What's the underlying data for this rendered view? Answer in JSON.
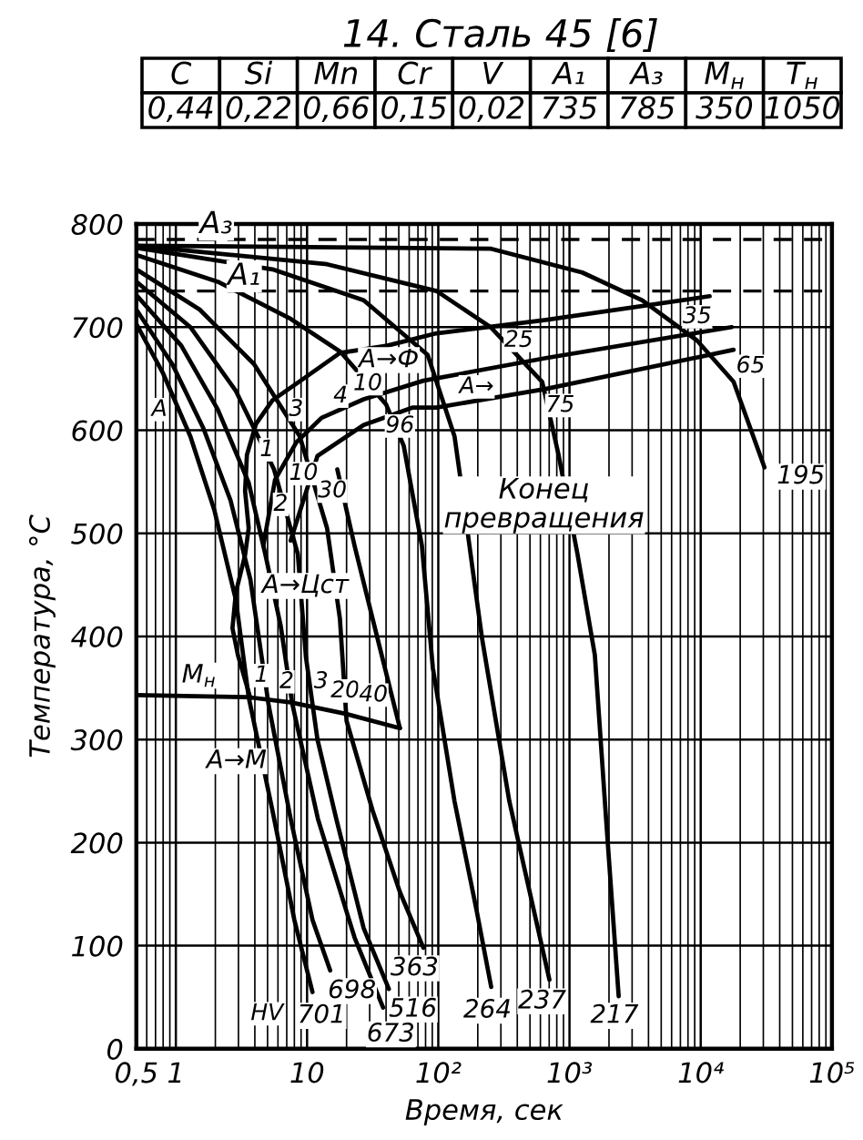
{
  "chart_data": [
    {
      "type": "other",
      "title": "14. Сталь 45 [6]",
      "annotations": [
        "C",
        "Si",
        "Mn",
        "Cr",
        "V",
        "A₁",
        "A₃",
        "M$_{н}$",
        "T$_{н}$",
        "0,44",
        "0,22",
        "0,66",
        "0,15",
        "0,02",
        "735",
        "785",
        "350",
        "1050"
      ]
    },
    {
      "type": "line",
      "xlabel": "Время, сек",
      "ylabel": "Температура, °С",
      "log": "x",
      "xlim": [
        0.5,
        100000
      ],
      "ylim": [
        0,
        800
      ],
      "xticks": [
        {
          "value": 0.5,
          "label": "0,5"
        },
        1,
        10,
        {
          "value": 100,
          "label": "10²"
        },
        {
          "value": 1000,
          "label": "10³"
        },
        {
          "value": 10000,
          "label": "10⁴"
        },
        {
          "value": 100000,
          "label": "10⁵"
        }
      ],
      "yticks": [
        0,
        100,
        200,
        300,
        400,
        500,
        600,
        700,
        800
      ],
      "grid": true,
      "line_style": "solid",
      "ref_lines": [
        {
          "axis": "y",
          "value": 785,
          "label": "A₃",
          "line_style": "dashed",
          "color": "#000000"
        },
        {
          "axis": "y",
          "value": 735,
          "label": "A₁",
          "line_style": "dashed",
          "color": "#000000"
        }
      ],
      "series": [
        {
          "color": "#000000",
          "x": [
            0.5,
            0.8,
            1.29,
            1.96,
            2.87,
            3.59,
            5.45,
            8.0,
            11.0
          ],
          "values": [
            703,
            655,
            594,
            523,
            435,
            341,
            231,
            125,
            55
          ]
        },
        {
          "color": "#000000",
          "x": [
            0.5,
            0.94,
            1.62,
            2.61,
            3.7,
            5.1,
            7.5,
            11.0,
            15
          ],
          "values": [
            717,
            664,
            602,
            532,
            455,
            333,
            223,
            125,
            76
          ]
        },
        {
          "color": "#000000",
          "x": [
            0.5,
            1.1,
            2.09,
            3.59,
            4.8,
            6.3,
            7.7,
            12.1,
            23,
            38
          ],
          "values": [
            731,
            682,
            620,
            549,
            480,
            410,
            335,
            223,
            108,
            40
          ]
        },
        {
          "color": "#000000",
          "x": [
            0.5,
            1.29,
            2.87,
            5.6,
            8.5,
            9.8,
            12,
            16.7,
            27,
            42
          ],
          "values": [
            744,
            700,
            638,
            562,
            480,
            380,
            300,
            223,
            117,
            58
          ]
        },
        {
          "color": "#000000",
          "x": [
            0.5,
            1.52,
            3.95,
            8.8,
            14.2,
            17.8,
            20,
            31.6,
            51,
            77
          ],
          "values": [
            756,
            717,
            664,
            594,
            505,
            417,
            318,
            231,
            152,
            98
          ]
        },
        {
          "color": "#000000",
          "x": [
            0.5,
            2.09,
            7.5,
            18,
            40,
            54.5,
            75,
            91,
            133,
            196,
            253
          ],
          "values": [
            770,
            744,
            708,
            676,
            625,
            585,
            488,
            369,
            240,
            134,
            60
          ]
        },
        {
          "color": "#000000",
          "x": [
            0.5,
            5.45,
            27,
            83,
            133,
            145,
            185,
            215,
            348,
            703
          ],
          "values": [
            777,
            756,
            726,
            673,
            594,
            560,
            460,
            399,
            240,
            67
          ]
        },
        {
          "color": "#000000",
          "x": [
            0.5,
            14.2,
            97,
            250,
            619,
            826,
            1150,
            1560,
            1900,
            2370
          ],
          "values": [
            779,
            761,
            735,
            700,
            647,
            576,
            480,
            382,
            223,
            51
          ]
        },
        {
          "color": "#000000",
          "x": [
            0.5,
            253,
            1250,
            3590,
            9380,
            17800,
            30600
          ],
          "values": [
            779,
            776,
            753,
            726,
            687,
            647,
            564
          ]
        },
        {
          "color": "#000000",
          "x": [
            3.7,
            2.97,
            2.7,
            2.87,
            3.37,
            3.59,
            3.37,
            3.48,
            4.08,
            5.45,
            9.4,
            17.8,
            40.8,
            97,
            660,
            11700
          ],
          "values": [
            340,
            382,
            408,
            443,
            479,
            505,
            541,
            576,
            606,
            629,
            650,
            675,
            682,
            694,
            707,
            730
          ]
        },
        {
          "color": "#000000",
          "x": [
            4.64,
            5.7,
            8.26,
            12.9,
            27,
            77,
            660,
            17200
          ],
          "values": [
            488,
            552,
            588,
            612,
            630,
            648,
            670,
            700
          ]
        },
        {
          "color": "#000000",
          "x": [
            7.5,
            12,
            27,
            64,
            97,
            660,
            17800
          ],
          "values": [
            493,
            575,
            605,
            622,
            622,
            640,
            678
          ]
        },
        {
          "color": "#000000",
          "x": [
            17,
            23,
            31.6,
            51
          ],
          "values": [
            562,
            488,
            417,
            311
          ]
        },
        {
          "color": "#000000",
          "x": [
            0.5,
            3.59,
            7.5,
            19.6,
            51
          ],
          "values": [
            343,
            341,
            336,
            325,
            311
          ]
        }
      ],
      "annotations": [
        "Конец\nпревращения",
        {
          "text": "А",
          "x": 0.75,
          "y": 620
        },
        {
          "text": "А→Ф",
          "x": 42,
          "y": 668
        },
        {
          "text": "А→",
          "x": 196,
          "y": 642
        },
        {
          "text": "А→Цст",
          "x": 9.7,
          "y": 449
        },
        {
          "text": "M$_{н}$",
          "x": 1.5,
          "y": 362
        },
        {
          "text": "А→М",
          "x": 2.9,
          "y": 279
        },
        {
          "text": "HV",
          "x": 4.95,
          "y": 34
        },
        {
          "text": "1",
          "x": 4.5,
          "y": 362
        },
        {
          "text": "2",
          "x": 7.0,
          "y": 356
        },
        {
          "text": "3",
          "x": 12.8,
          "y": 356
        },
        {
          "text": "20",
          "x": 19.5,
          "y": 347
        },
        {
          "text": "40",
          "x": 32,
          "y": 343
        },
        {
          "text": "1",
          "x": 4.95,
          "y": 581
        },
        {
          "text": "2",
          "x": 6.3,
          "y": 528
        },
        {
          "text": "3",
          "x": 8.26,
          "y": 620
        },
        {
          "text": "4",
          "x": 18,
          "y": 633
        },
        {
          "text": "10",
          "x": 9.4,
          "y": 558
        },
        {
          "text": "30",
          "x": 15.6,
          "y": 541
        },
        {
          "text": "96",
          "x": 51,
          "y": 604
        },
        {
          "text": "10",
          "x": 29,
          "y": 645
        },
        {
          "text": "25",
          "x": 410,
          "y": 687
        },
        {
          "text": "75",
          "x": 850,
          "y": 624
        },
        {
          "text": "35",
          "x": 9400,
          "y": 710
        },
        {
          "text": "65",
          "x": 24000,
          "y": 662
        },
        {
          "text": "701",
          "x": 12.9,
          "y": 32
        },
        {
          "text": "698",
          "x": 22,
          "y": 56
        },
        {
          "text": "673",
          "x": 43.5,
          "y": 14
        },
        {
          "text": "516",
          "x": 64,
          "y": 38
        },
        {
          "text": "363",
          "x": 66,
          "y": 78
        },
        {
          "text": "264",
          "x": 237,
          "y": 37
        },
        {
          "text": "237",
          "x": 619,
          "y": 46
        },
        {
          "text": "217",
          "x": 2200,
          "y": 32
        },
        {
          "text": "195",
          "x": 58000,
          "y": 555
        }
      ]
    }
  ]
}
